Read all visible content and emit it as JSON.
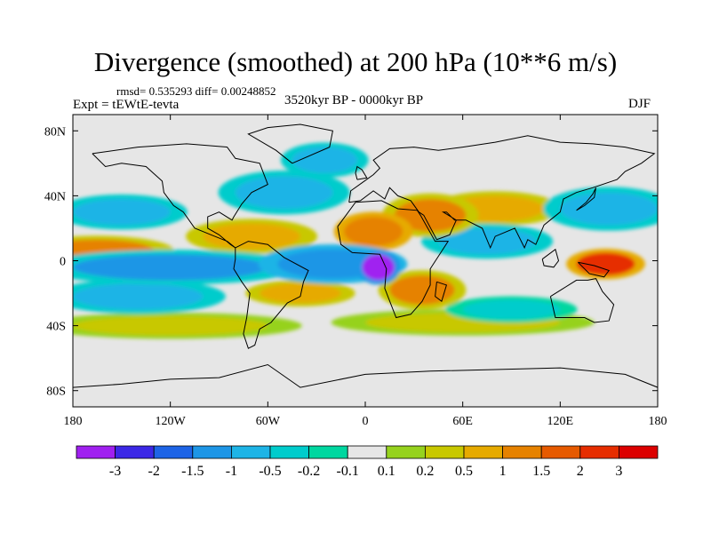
{
  "header": {
    "title": "Divergence (smoothed) at 200 hPa (10**6 m/s)",
    "stats": "rmsd= 0.535293 diff= 0.00248852",
    "experiment": "Expt = tEWtE-tevta",
    "period": "3520kyr BP - 0000kyr BP",
    "season": "DJF"
  },
  "chart_data": {
    "type": "heatmap",
    "title": "Divergence (smoothed) at 200 hPa (10**6 m/s)",
    "projection": "cylindrical equidistant, global",
    "xlim": [
      -180,
      180
    ],
    "ylim": [
      -90,
      90
    ],
    "x_ticks": [
      {
        "value": -180,
        "label": "180"
      },
      {
        "value": -120,
        "label": "120W"
      },
      {
        "value": -60,
        "label": "60W"
      },
      {
        "value": 0,
        "label": "0"
      },
      {
        "value": 60,
        "label": "60E"
      },
      {
        "value": 120,
        "label": "120E"
      },
      {
        "value": 180,
        "label": "180"
      }
    ],
    "y_ticks": [
      {
        "value": 80,
        "label": "80N"
      },
      {
        "value": 40,
        "label": "40N"
      },
      {
        "value": 0,
        "label": "0"
      },
      {
        "value": -40,
        "label": "40S"
      },
      {
        "value": -80,
        "label": "80S"
      }
    ],
    "colorbar": {
      "levels": [
        "-3",
        "-2",
        "-1.5",
        "-1",
        "-0.5",
        "-0.2",
        "-0.1",
        "0.1",
        "0.2",
        "0.5",
        "1",
        "1.5",
        "2",
        "3"
      ],
      "colors": [
        "#a020f0",
        "#3c28e6",
        "#1e64e6",
        "#1e96e6",
        "#1eb4e6",
        "#00cccc",
        "#00d7a0",
        "#e6e6e6",
        "#96d21e",
        "#c8c800",
        "#e6aa00",
        "#e68200",
        "#e65a00",
        "#e62d00",
        "#dc0000"
      ]
    },
    "regions": [
      {
        "name": "central-africa-min",
        "lon": 8,
        "lat": -4,
        "rlon": 10,
        "rlat": 8,
        "value": -3.1
      },
      {
        "name": "equatorial-atlantic-neg",
        "lon": -20,
        "lat": -2,
        "rlon": 34,
        "rlat": 9,
        "value": -1.5
      },
      {
        "name": "equatorial-pacific-neg",
        "lon": -120,
        "lat": -4,
        "rlon": 60,
        "rlat": 8,
        "value": -1.2
      },
      {
        "name": "south-pacific-neg",
        "lon": -140,
        "lat": -22,
        "rlon": 40,
        "rlat": 8,
        "value": -0.8
      },
      {
        "name": "north-pacific-neg",
        "lon": -150,
        "lat": 30,
        "rlon": 30,
        "rlat": 8,
        "value": -0.8
      },
      {
        "name": "north-atlantic-neg",
        "lon": -50,
        "lat": 42,
        "rlon": 30,
        "rlat": 10,
        "value": -0.7
      },
      {
        "name": "arctic-atlantic-neg",
        "lon": -25,
        "lat": 62,
        "rlon": 20,
        "rlat": 8,
        "value": -0.6
      },
      {
        "name": "indian-ocean-neg",
        "lon": 75,
        "lat": 12,
        "rlon": 30,
        "rlat": 8,
        "value": -1.0
      },
      {
        "name": "south-indian-neg",
        "lon": 90,
        "lat": -30,
        "rlon": 30,
        "rlat": 6,
        "value": -0.5
      },
      {
        "name": "north-pacific-east-neg",
        "lon": 150,
        "lat": 32,
        "rlon": 30,
        "rlat": 10,
        "value": -1.0
      },
      {
        "name": "tropical-pacific-east-pos",
        "lon": -165,
        "lat": 6,
        "rlon": 35,
        "rlat": 7,
        "value": 1.0
      },
      {
        "name": "atlantic-mid-pos",
        "lon": -70,
        "lat": 15,
        "rlon": 30,
        "rlat": 8,
        "value": 0.8
      },
      {
        "name": "sahara-pos",
        "lon": 5,
        "lat": 18,
        "rlon": 18,
        "rlat": 9,
        "value": 1.4
      },
      {
        "name": "arabia-pos",
        "lon": 40,
        "lat": 28,
        "rlon": 22,
        "rlat": 10,
        "value": 1.0
      },
      {
        "name": "asia-pos",
        "lon": 80,
        "lat": 32,
        "rlon": 30,
        "rlat": 8,
        "value": 0.8
      },
      {
        "name": "maritime-continent-pos",
        "lon": 148,
        "lat": -2,
        "rlon": 18,
        "rlat": 7,
        "value": 2.2
      },
      {
        "name": "south-africa-pos",
        "lon": 35,
        "lat": -18,
        "rlon": 20,
        "rlat": 9,
        "value": 1.0
      },
      {
        "name": "south-atlantic-pos",
        "lon": -40,
        "lat": -20,
        "rlon": 25,
        "rlat": 6,
        "value": 0.6
      },
      {
        "name": "southern-ocean-pos",
        "lon": -120,
        "lat": -40,
        "rlon": 60,
        "rlat": 6,
        "value": 0.4
      },
      {
        "name": "southern-ocean-east-pos",
        "lon": 60,
        "lat": -38,
        "rlon": 60,
        "rlat": 6,
        "value": 0.4
      }
    ]
  }
}
